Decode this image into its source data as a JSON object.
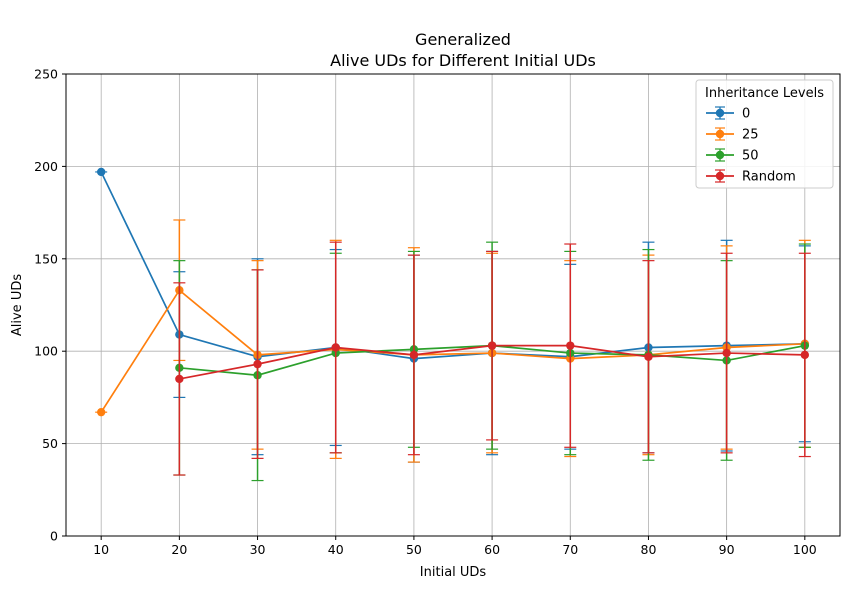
{
  "chart_data": {
    "type": "line",
    "title": "Generalized",
    "subtitle": "Alive UDs for Different Initial UDs",
    "xlabel": "Initial UDs",
    "ylabel": "Alive UDs",
    "xlim": [
      5.5,
      104.5
    ],
    "ylim": [
      0,
      250
    ],
    "xticks": [
      10,
      20,
      30,
      40,
      50,
      60,
      70,
      80,
      90,
      100
    ],
    "yticks": [
      0,
      50,
      100,
      150,
      200,
      250
    ],
    "grid": true,
    "legend": {
      "title": "Inheritance Levels",
      "placement": "top-right"
    },
    "series": [
      {
        "name": "0",
        "color": "#1f77b4",
        "x": [
          10,
          20,
          30,
          40,
          50,
          60,
          70,
          80,
          90,
          100
        ],
        "y": [
          197,
          109,
          97,
          102,
          96,
          99,
          97,
          102,
          103,
          104
        ],
        "err": [
          0,
          34,
          53,
          53,
          56,
          55,
          50,
          57,
          57,
          53
        ]
      },
      {
        "name": "25",
        "color": "#ff7f0e",
        "x": [
          10,
          20,
          30,
          40,
          50,
          60,
          70,
          80,
          90,
          100
        ],
        "y": [
          67,
          133,
          98,
          101,
          98,
          99,
          96,
          98,
          102,
          104
        ],
        "err": [
          0,
          38,
          51,
          59,
          58,
          54,
          53,
          54,
          55,
          56
        ]
      },
      {
        "name": "50",
        "color": "#2ca02c",
        "x": [
          20,
          30,
          40,
          50,
          60,
          70,
          80,
          90,
          100
        ],
        "y": [
          91,
          87,
          99,
          101,
          103,
          99,
          98,
          95,
          103
        ],
        "err": [
          58,
          57,
          54,
          53,
          56,
          55,
          57,
          54,
          55
        ]
      },
      {
        "name": "Random",
        "color": "#d62728",
        "x": [
          20,
          30,
          40,
          50,
          60,
          70,
          80,
          90,
          100
        ],
        "y": [
          85,
          93,
          102,
          98,
          103,
          103,
          97,
          99,
          98
        ],
        "err": [
          52,
          51,
          57,
          54,
          51,
          55,
          52,
          54,
          55
        ]
      }
    ]
  }
}
